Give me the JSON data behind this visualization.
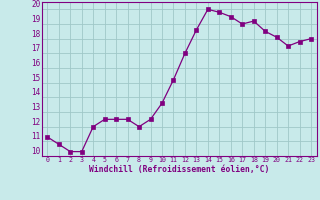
{
  "x": [
    0,
    1,
    2,
    3,
    4,
    5,
    6,
    7,
    8,
    9,
    10,
    11,
    12,
    13,
    14,
    15,
    16,
    17,
    18,
    19,
    20,
    21,
    22,
    23
  ],
  "y": [
    11.3,
    10.8,
    10.3,
    10.3,
    12.0,
    12.5,
    12.5,
    12.5,
    12.0,
    12.5,
    13.6,
    15.2,
    17.0,
    18.6,
    20.0,
    19.8,
    19.5,
    19.0,
    19.2,
    18.5,
    18.1,
    17.5,
    17.8,
    18.0
  ],
  "line_color": "#800080",
  "marker": "s",
  "marker_size": 2.5,
  "bg_color": "#c8eaea",
  "grid_color": "#a0c8c8",
  "tick_color": "#800080",
  "xlabel": "Windchill (Refroidissement éolien,°C)",
  "xlim": [
    -0.5,
    23.5
  ],
  "ylim": [
    10,
    20.5
  ],
  "yticks": [
    10,
    11,
    12,
    13,
    14,
    15,
    16,
    17,
    18,
    19,
    20
  ],
  "xticks": [
    0,
    1,
    2,
    3,
    4,
    5,
    6,
    7,
    8,
    9,
    10,
    11,
    12,
    13,
    14,
    15,
    16,
    17,
    18,
    19,
    20,
    21,
    22,
    23
  ],
  "fig_width": 3.2,
  "fig_height": 2.0,
  "dpi": 100
}
